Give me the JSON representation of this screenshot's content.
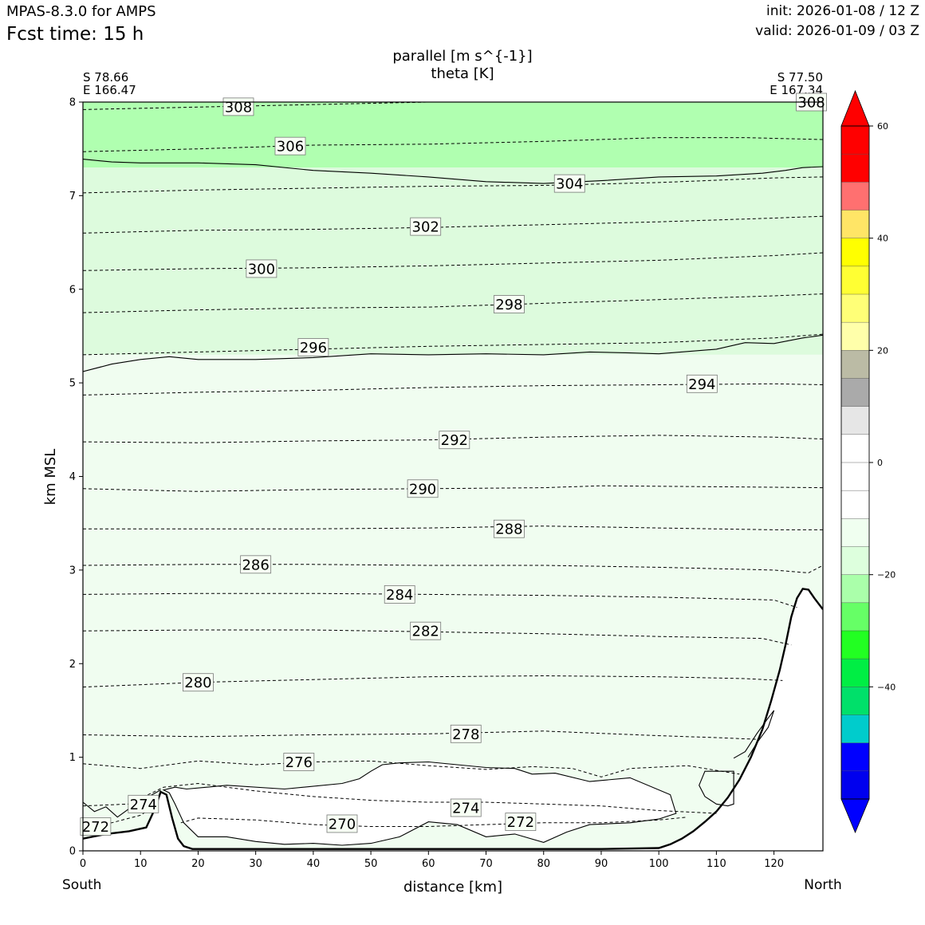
{
  "header": {
    "model": "MPAS-8.3.0 for AMPS",
    "fcst_time": "Fcst time:   15 h",
    "init": "init: 2026-01-08 / 12 Z",
    "valid": "valid: 2026-01-09 / 03 Z"
  },
  "chart_data": {
    "type": "cross-section",
    "title": "parallel [m s^{-1}]",
    "subtitle": "theta [K]",
    "xlabel": "distance [km]",
    "ylabel": "km MSL",
    "xlim": [
      0,
      128.5
    ],
    "ylim": [
      0,
      8
    ],
    "x_ticks": [
      0,
      10,
      20,
      30,
      40,
      50,
      60,
      70,
      80,
      90,
      100,
      110,
      120
    ],
    "y_ticks": [
      0,
      1,
      2,
      3,
      4,
      5,
      6,
      7,
      8
    ],
    "left_end": {
      "lat": "S 78.66",
      "lon": "E 166.47",
      "name": "South"
    },
    "right_end": {
      "lat": "S 77.50",
      "lon": "E 167.34",
      "name": "North"
    },
    "terrain": {
      "x": [
        0,
        4,
        8,
        11,
        12.5,
        13.5,
        14.5,
        15.5,
        16.5,
        17.5,
        19,
        25,
        60,
        90,
        100,
        102,
        104,
        106,
        108,
        110,
        112,
        114,
        116,
        118,
        119.5,
        121,
        122,
        123,
        124,
        125,
        126,
        127,
        128.5
      ],
      "y": [
        0.13,
        0.18,
        0.21,
        0.25,
        0.45,
        0.63,
        0.6,
        0.35,
        0.13,
        0.05,
        0.02,
        0.02,
        0.02,
        0.02,
        0.03,
        0.07,
        0.13,
        0.21,
        0.31,
        0.42,
        0.57,
        0.76,
        1.0,
        1.3,
        1.6,
        1.93,
        2.2,
        2.5,
        2.7,
        2.8,
        2.79,
        2.7,
        2.58
      ]
    },
    "theta_isentropes": [
      {
        "level": 308,
        "x": [
          0,
          30,
          60,
          90,
          128.5
        ],
        "y": [
          7.92,
          7.96,
          8.0,
          8.03,
          8.03
        ]
      },
      {
        "level": 306,
        "x": [
          0,
          20,
          40,
          60,
          80,
          100,
          115,
          128.5
        ],
        "y": [
          7.47,
          7.5,
          7.54,
          7.55,
          7.58,
          7.62,
          7.62,
          7.6
        ]
      },
      {
        "level": 304,
        "x": [
          0,
          20,
          40,
          60,
          80,
          100,
          120,
          128.5
        ],
        "y": [
          7.03,
          7.06,
          7.08,
          7.1,
          7.11,
          7.14,
          7.19,
          7.2
        ]
      },
      {
        "level": 302,
        "x": [
          0,
          20,
          40,
          60,
          80,
          100,
          120,
          128.5
        ],
        "y": [
          6.6,
          6.63,
          6.64,
          6.66,
          6.69,
          6.72,
          6.76,
          6.78
        ]
      },
      {
        "level": 300,
        "x": [
          0,
          20,
          40,
          60,
          80,
          100,
          120,
          128.5
        ],
        "y": [
          6.2,
          6.22,
          6.23,
          6.25,
          6.28,
          6.31,
          6.36,
          6.39
        ]
      },
      {
        "level": 298,
        "x": [
          0,
          20,
          40,
          60,
          80,
          100,
          120,
          128.5
        ],
        "y": [
          5.75,
          5.78,
          5.8,
          5.81,
          5.85,
          5.89,
          5.93,
          5.95
        ]
      },
      {
        "level": 296,
        "x": [
          0,
          20,
          40,
          60,
          80,
          100,
          120,
          128.5
        ],
        "y": [
          5.3,
          5.33,
          5.36,
          5.39,
          5.41,
          5.43,
          5.48,
          5.52
        ]
      },
      {
        "level": 294,
        "x": [
          0,
          20,
          40,
          60,
          80,
          100,
          120,
          128.5
        ],
        "y": [
          4.87,
          4.9,
          4.92,
          4.95,
          4.97,
          4.98,
          4.99,
          4.98
        ]
      },
      {
        "level": 292,
        "x": [
          0,
          20,
          40,
          60,
          80,
          100,
          120,
          128.5
        ],
        "y": [
          4.37,
          4.36,
          4.38,
          4.39,
          4.42,
          4.44,
          4.42,
          4.4
        ]
      },
      {
        "level": 290,
        "x": [
          0,
          20,
          40,
          60,
          80,
          90,
          110,
          128.5
        ],
        "y": [
          3.87,
          3.84,
          3.86,
          3.87,
          3.88,
          3.9,
          3.89,
          3.88
        ]
      },
      {
        "level": 288,
        "x": [
          0,
          20,
          40,
          60,
          80,
          100,
          120,
          128.5
        ],
        "y": [
          3.44,
          3.44,
          3.44,
          3.45,
          3.47,
          3.45,
          3.43,
          3.43
        ]
      },
      {
        "level": 286,
        "x": [
          0,
          20,
          40,
          60,
          80,
          100,
          120,
          126,
          128.5
        ],
        "y": [
          3.05,
          3.06,
          3.06,
          3.05,
          3.05,
          3.03,
          3.0,
          2.97,
          3.05
        ]
      },
      {
        "level": 284,
        "x": [
          0,
          20,
          40,
          60,
          80,
          100,
          120,
          124
        ],
        "y": [
          2.74,
          2.75,
          2.75,
          2.74,
          2.73,
          2.71,
          2.68,
          2.6
        ]
      },
      {
        "level": 282,
        "x": [
          0,
          20,
          40,
          60,
          80,
          100,
          118,
          123
        ],
        "y": [
          2.35,
          2.36,
          2.36,
          2.34,
          2.32,
          2.29,
          2.27,
          2.2
        ]
      },
      {
        "level": 280,
        "x": [
          0,
          20,
          40,
          60,
          80,
          100,
          115,
          121.5
        ],
        "y": [
          1.75,
          1.8,
          1.83,
          1.86,
          1.87,
          1.86,
          1.84,
          1.82
        ]
      },
      {
        "level": 278,
        "x": [
          0,
          20,
          40,
          60,
          80,
          100,
          110,
          117.5
        ],
        "y": [
          1.24,
          1.22,
          1.24,
          1.25,
          1.28,
          1.23,
          1.21,
          1.19
        ]
      },
      {
        "level": 276,
        "x": [
          0,
          10,
          20,
          30,
          40,
          50,
          60,
          70,
          78,
          85,
          90,
          95,
          105,
          114
        ],
        "y": [
          0.93,
          0.88,
          0.96,
          0.92,
          0.95,
          0.96,
          0.91,
          0.87,
          0.9,
          0.88,
          0.79,
          0.88,
          0.91,
          0.82
        ]
      },
      {
        "level": 274,
        "x": [
          0,
          8,
          14,
          20,
          30,
          40,
          50,
          60,
          70,
          80,
          90,
          100,
          110
        ],
        "y": [
          0.48,
          0.5,
          0.68,
          0.72,
          0.64,
          0.58,
          0.54,
          0.52,
          0.52,
          0.5,
          0.48,
          0.43,
          0.4
        ]
      },
      {
        "level": 272,
        "x": [
          0,
          5,
          10,
          13
        ],
        "y": [
          0.25,
          0.3,
          0.38,
          0.5
        ]
      },
      {
        "level": 270,
        "x": [
          17,
          20,
          30,
          40,
          50,
          60,
          70,
          80,
          90,
          100,
          105
        ],
        "y": [
          0.3,
          0.35,
          0.33,
          0.28,
          0.26,
          0.26,
          0.28,
          0.3,
          0.3,
          0.33,
          0.36
        ]
      }
    ],
    "theta_label_positions": [
      {
        "text": "308",
        "x": 27,
        "y": 7.95
      },
      {
        "text": "308",
        "x": 126.5,
        "y": 8.0
      },
      {
        "text": "306",
        "x": 36,
        "y": 7.53
      },
      {
        "text": "304",
        "x": 84.5,
        "y": 7.13
      },
      {
        "text": "302",
        "x": 59.5,
        "y": 6.67
      },
      {
        "text": "300",
        "x": 31,
        "y": 6.22
      },
      {
        "text": "298",
        "x": 74,
        "y": 5.84
      },
      {
        "text": "296",
        "x": 40,
        "y": 5.38
      },
      {
        "text": "294",
        "x": 107.5,
        "y": 4.99
      },
      {
        "text": "292",
        "x": 64.5,
        "y": 4.39
      },
      {
        "text": "290",
        "x": 59,
        "y": 3.87
      },
      {
        "text": "288",
        "x": 74,
        "y": 3.44
      },
      {
        "text": "286",
        "x": 30,
        "y": 3.06
      },
      {
        "text": "284",
        "x": 55,
        "y": 2.74
      },
      {
        "text": "282",
        "x": 59.5,
        "y": 2.35
      },
      {
        "text": "280",
        "x": 20,
        "y": 1.8
      },
      {
        "text": "278",
        "x": 66.5,
        "y": 1.25
      },
      {
        "text": "276",
        "x": 37.5,
        "y": 0.95
      },
      {
        "text": "274",
        "x": 10.5,
        "y": 0.5
      },
      {
        "text": "274",
        "x": 66.5,
        "y": 0.46
      },
      {
        "text": "272",
        "x": 2.2,
        "y": 0.26
      },
      {
        "text": "272",
        "x": 76,
        "y": 0.31
      },
      {
        "text": "270",
        "x": 45,
        "y": 0.29
      }
    ],
    "wind_contour_levels": [
      0,
      -10,
      -20
    ],
    "wind_contours": [
      {
        "level": -20,
        "x": [
          0,
          5,
          10,
          20,
          30,
          40,
          50,
          60,
          70,
          80,
          90,
          100,
          110,
          118,
          122,
          125,
          128.5
        ],
        "y": [
          7.39,
          7.36,
          7.35,
          7.35,
          7.33,
          7.27,
          7.24,
          7.2,
          7.15,
          7.13,
          7.16,
          7.2,
          7.21,
          7.24,
          7.27,
          7.3,
          7.31
        ]
      },
      {
        "level": -10,
        "x": [
          0,
          5,
          10,
          15,
          20,
          30,
          40,
          50,
          60,
          70,
          80,
          88,
          95,
          100,
          110,
          115,
          120,
          125,
          128.5
        ],
        "y": [
          5.12,
          5.2,
          5.25,
          5.28,
          5.25,
          5.25,
          5.27,
          5.31,
          5.3,
          5.31,
          5.3,
          5.33,
          5.32,
          5.31,
          5.36,
          5.43,
          5.42,
          5.48,
          5.51
        ]
      },
      {
        "level": 0,
        "x": [
          14,
          16,
          18,
          25,
          35,
          45,
          48,
          50,
          52,
          55,
          60,
          65,
          70,
          75,
          78,
          82,
          88,
          95,
          102,
          103,
          100,
          95,
          88,
          84,
          80,
          75,
          70,
          65,
          60,
          55,
          50,
          45,
          40,
          35,
          30,
          25,
          20,
          17.5,
          16,
          15
        ],
        "y": [
          0.65,
          0.68,
          0.66,
          0.7,
          0.66,
          0.72,
          0.77,
          0.85,
          0.92,
          0.94,
          0.95,
          0.92,
          0.89,
          0.88,
          0.82,
          0.83,
          0.74,
          0.78,
          0.6,
          0.4,
          0.34,
          0.3,
          0.28,
          0.2,
          0.09,
          0.18,
          0.15,
          0.28,
          0.31,
          0.15,
          0.08,
          0.06,
          0.08,
          0.07,
          0.1,
          0.15,
          0.15,
          0.3,
          0.5,
          0.62
        ]
      },
      {
        "level": 0,
        "x": [
          0,
          2,
          4,
          6,
          8,
          10,
          12,
          13.5
        ],
        "y": [
          0.52,
          0.42,
          0.47,
          0.36,
          0.45,
          0.52,
          0.6,
          0.65
        ]
      },
      {
        "level": 0,
        "x": [
          113,
          115,
          117,
          119,
          120,
          119,
          117,
          116,
          115.5
        ],
        "y": [
          0.99,
          1.06,
          1.25,
          1.42,
          1.5,
          1.32,
          1.15,
          1.05,
          1.0
        ]
      },
      {
        "level": 0,
        "x": [
          113,
          111,
          108,
          107,
          108,
          110,
          112,
          113
        ],
        "y": [
          0.85,
          0.85,
          0.85,
          0.7,
          0.58,
          0.5,
          0.48,
          0.5
        ]
      }
    ],
    "colorbar": {
      "boundaries": [
        -60,
        -55,
        -50,
        -45,
        -40,
        -35,
        -30,
        -25,
        -20,
        -15,
        -10,
        -5,
        0,
        5,
        10,
        15,
        20,
        25,
        30,
        35,
        40,
        45,
        50,
        55,
        60
      ],
      "colors": [
        "#0000ee",
        "#0000ff",
        "#00cccc",
        "#00e06a",
        "#00ee44",
        "#22ff22",
        "#66ff66",
        "#aaffaa",
        "#ddffdd",
        "#f0fff0",
        "#ffffff",
        "#ffffff",
        "#ffffff",
        "#e6e6e6",
        "#aaaaaa",
        "#bbbba5",
        "#ffffaa",
        "#ffff77",
        "#ffff33",
        "#ffff00",
        "#ffe566",
        "#ff7070",
        "#ff0000",
        "#ff0000"
      ],
      "extend_colors": [
        "#0000ff",
        "#ff0000"
      ],
      "tick_values": [
        -40,
        -20,
        0,
        20,
        40,
        60
      ],
      "tick_labels": [
        "−40",
        "−20",
        "0",
        "20",
        "40",
        "60"
      ]
    },
    "fill_bands": [
      {
        "from": 7.3,
        "to": 8.0,
        "color": "#b0ffb0"
      },
      {
        "from": 5.3,
        "to": 7.3,
        "color": "#ddfbdd"
      },
      {
        "from": 0.0,
        "to": 5.3,
        "color": "#f0fdf0"
      }
    ]
  }
}
